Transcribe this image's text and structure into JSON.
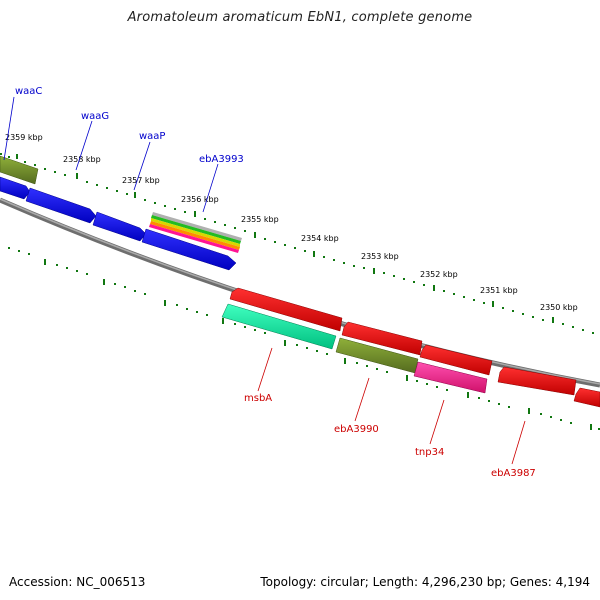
{
  "title": "Aromatoleum aromaticum EbN1, complete genome",
  "footer": {
    "accession": "Accession: NC_006513",
    "summary": "Topology: circular; Length: 4,296,230 bp; Genes: 4,194"
  },
  "colors": {
    "forward_gene": "#0000ee",
    "reverse_gene": "#ee0000",
    "backbone": "#808080",
    "tick": "#117711",
    "olive": "#6b8e23",
    "teal": "#00e6a0",
    "pink": "#ff1493",
    "label_forward": "#0000cc",
    "label_reverse": "#cc0000"
  },
  "ticks": [
    "2359 kbp",
    "2358 kbp",
    "2357 kbp",
    "2356 kbp",
    "2355 kbp",
    "2354 kbp",
    "2353 kbp",
    "2352 kbp",
    "2351 kbp",
    "2350 kbp"
  ],
  "forward_labels": [
    "waaC",
    "waaG",
    "waaP",
    "ebA3993"
  ],
  "reverse_labels": [
    "msbA",
    "ebA3990",
    "tnp34",
    "ebA3987"
  ]
}
